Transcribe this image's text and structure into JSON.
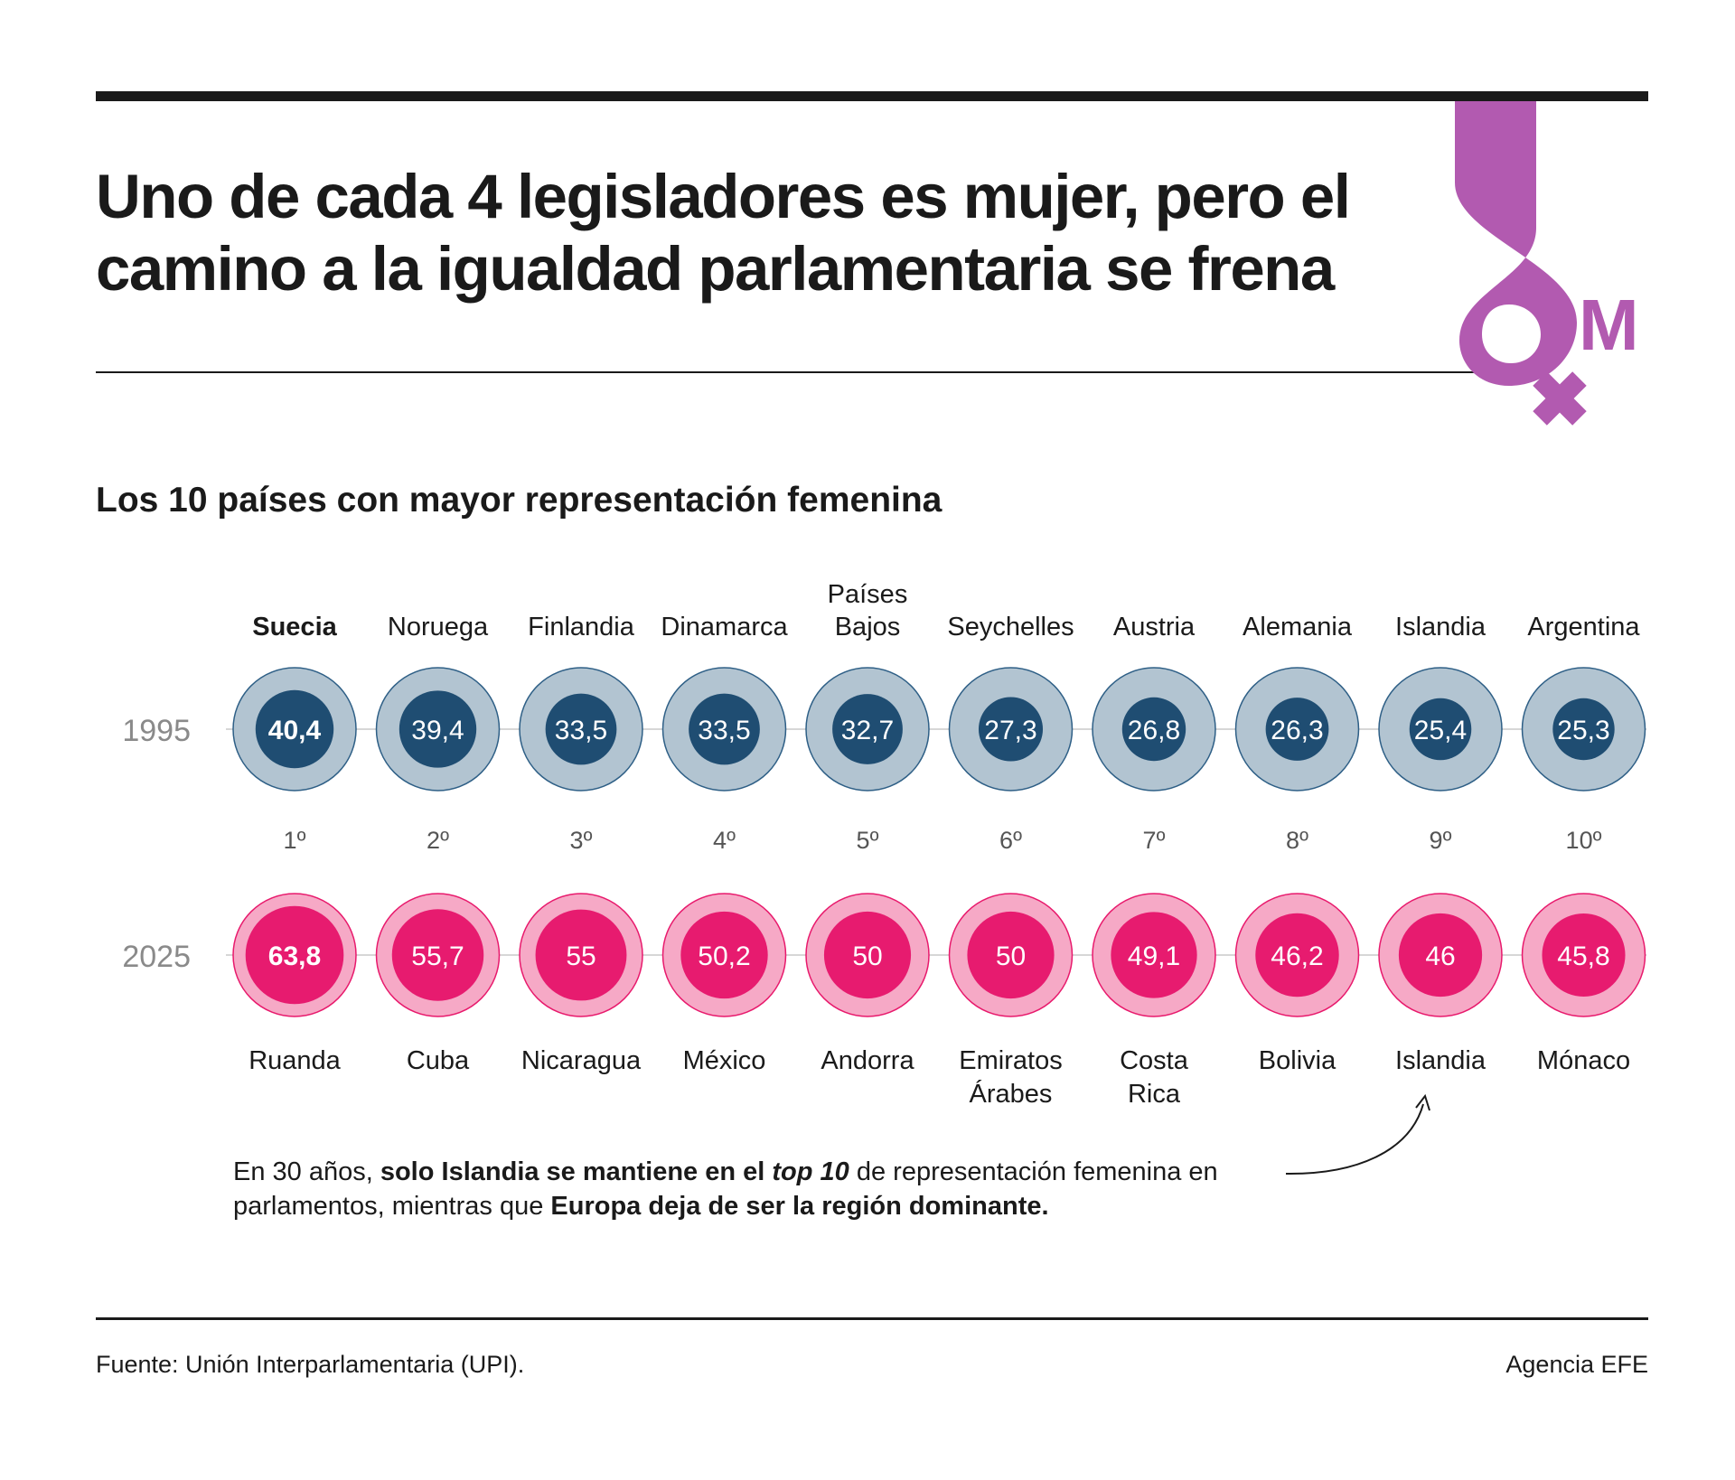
{
  "header": {
    "title": "Uno de cada 4 legisladores es mujer, pero el camino a la igualdad parlamentaria se frena",
    "logo_text": "M",
    "logo_color": "#b25ab0"
  },
  "subtitle": "Los 10 países con mayor representación femenina",
  "chart_data": {
    "type": "scatter",
    "title": "Los 10 países con mayor representación femenina",
    "rows": [
      "1995",
      "2025"
    ],
    "ranks": [
      "1º",
      "2º",
      "3º",
      "4º",
      "5º",
      "6º",
      "7º",
      "8º",
      "9º",
      "10º"
    ],
    "series": [
      {
        "name": "1995",
        "countries": [
          "Suecia",
          "Noruega",
          "Finlandia",
          "Dinamarca",
          "Países Bajos",
          "Seychelles",
          "Austria",
          "Alemania",
          "Islandia",
          "Argentina"
        ],
        "values": [
          40.4,
          39.4,
          33.5,
          33.5,
          32.7,
          27.3,
          26.8,
          26.3,
          25.4,
          25.3
        ],
        "labels": [
          "40,4",
          "39,4",
          "33,5",
          "33,5",
          "32,7",
          "27,3",
          "26,8",
          "26,3",
          "25,4",
          "25,3"
        ],
        "outer_color": "#b2c4d1",
        "outer_stroke": "#2e5f86",
        "inner_color": "#1f4d72"
      },
      {
        "name": "2025",
        "countries": [
          "Ruanda",
          "Cuba",
          "Nicaragua",
          "México",
          "Andorra",
          "Emiratos Árabes",
          "Costa Rica",
          "Bolivia",
          "Islandia",
          "Mónaco"
        ],
        "values": [
          63.8,
          55.7,
          55,
          50.2,
          50,
          50,
          49.1,
          46.2,
          46,
          45.8
        ],
        "labels": [
          "63,8",
          "55,7",
          "55",
          "50,2",
          "50",
          "50",
          "49,1",
          "46,2",
          "46",
          "45,8"
        ],
        "outer_color": "#f6a9c6",
        "outer_stroke": "#e8196c",
        "inner_color": "#e71b6f"
      }
    ],
    "circle_scale_max": 100
  },
  "note": {
    "p1": "En 30 años, ",
    "b1": "solo Islandia se mantiene en el ",
    "i1": "top 10",
    "p2": " de representación femenina en parlamentos, mientras que ",
    "b2": "Europa deja de ser la región dominante."
  },
  "footer": {
    "source": "Fuente: Unión Interparlamentaria (UPI).",
    "credit": "Agencia EFE"
  }
}
